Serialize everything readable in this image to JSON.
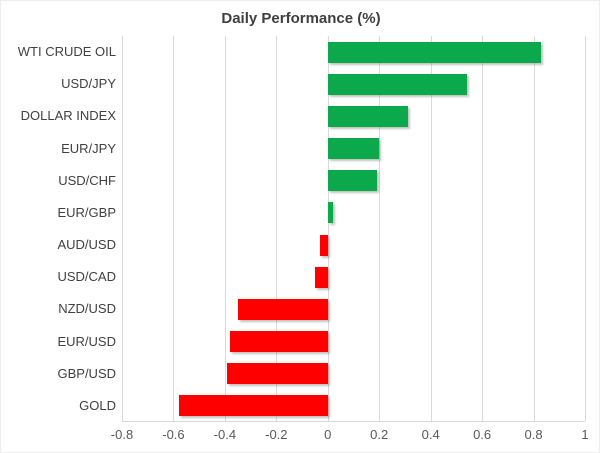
{
  "chart_data": {
    "type": "bar",
    "orientation": "horizontal",
    "title": "Daily Performance (%)",
    "categories": [
      "WTI CRUDE OIL",
      "USD/JPY",
      "DOLLAR INDEX",
      "EUR/JPY",
      "USD/CHF",
      "EUR/GBP",
      "AUD/USD",
      "USD/CAD",
      "NZD/USD",
      "EUR/USD",
      "GBP/USD",
      "GOLD"
    ],
    "values": [
      0.83,
      0.54,
      0.31,
      0.2,
      0.19,
      0.02,
      -0.03,
      -0.05,
      -0.35,
      -0.38,
      -0.39,
      -0.58
    ],
    "xlabel": "",
    "ylabel": "",
    "xlim": [
      -0.8,
      1.0
    ],
    "xticks": [
      -0.8,
      -0.6,
      -0.4,
      -0.2,
      0,
      0.2,
      0.4,
      0.6,
      0.8,
      1
    ],
    "xtick_labels": [
      "-0.8",
      "-0.6",
      "-0.4",
      "-0.2",
      "0",
      "0.2",
      "0.4",
      "0.6",
      "0.8",
      "1"
    ],
    "grid": true,
    "legend": false,
    "colors": {
      "positive": "#0ba94c",
      "negative": "#fe0000",
      "gridline": "#d9d9d9",
      "axis_line": "#d6d6d6",
      "title_text": "#3f3f3f",
      "category_text": "#404040",
      "tick_text": "#595959",
      "background": "#ffffff"
    }
  }
}
